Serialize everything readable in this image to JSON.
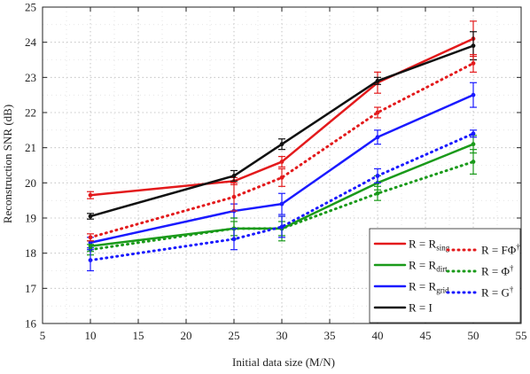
{
  "chart_data": {
    "type": "line",
    "xlabel": "Initial data size (M/N)",
    "ylabel": "Reconstruction SNR (dB)",
    "xlim": [
      5,
      55
    ],
    "ylim": [
      16,
      25
    ],
    "xticks": [
      5,
      10,
      15,
      20,
      25,
      30,
      35,
      40,
      45,
      50,
      55
    ],
    "yticks": [
      16,
      17,
      18,
      19,
      20,
      21,
      22,
      23,
      24,
      25
    ],
    "grid": "dotted",
    "legend_position": "bottom-right",
    "x": [
      10,
      25,
      30,
      40,
      50
    ],
    "series": [
      {
        "name": "R = R",
        "name_sub": "sing",
        "name_sup": "",
        "style": "solid",
        "color": "#e31a1c",
        "values": [
          19.65,
          20.05,
          20.6,
          22.85,
          24.1
        ],
        "errors": [
          0.1,
          0.1,
          0.15,
          0.3,
          0.5
        ]
      },
      {
        "name": "R = R",
        "name_sub": "dirt",
        "name_sup": "",
        "style": "solid",
        "color": "#1a9a1a",
        "values": [
          18.2,
          18.7,
          18.7,
          20.0,
          21.1
        ],
        "errors": [
          0.15,
          0.2,
          0.2,
          0.2,
          0.25
        ]
      },
      {
        "name": "R = R",
        "name_sub": "grid",
        "name_sup": "",
        "style": "solid",
        "color": "#1a1aff",
        "values": [
          18.3,
          19.2,
          19.4,
          21.3,
          22.5
        ],
        "errors": [
          0.15,
          0.2,
          0.3,
          0.2,
          0.35
        ]
      },
      {
        "name": "R = I",
        "name_sub": "",
        "name_sup": "",
        "style": "solid",
        "color": "#111111",
        "values": [
          19.05,
          20.2,
          21.1,
          22.9,
          23.9
        ],
        "errors": [
          0.08,
          0.15,
          0.15,
          0.1,
          0.4
        ]
      },
      {
        "name": "R = FΦ",
        "name_sub": "",
        "name_sup": "†",
        "style": "dotted",
        "color": "#e31a1c",
        "values": [
          18.45,
          19.6,
          20.15,
          22.0,
          23.4
        ],
        "errors": [
          0.1,
          0.4,
          0.25,
          0.15,
          0.25
        ]
      },
      {
        "name": "R = Φ",
        "name_sub": "",
        "name_sup": "†",
        "style": "dotted",
        "color": "#1a9a1a",
        "values": [
          18.1,
          18.7,
          18.7,
          19.7,
          20.6
        ],
        "errors": [
          0.15,
          0.3,
          0.35,
          0.2,
          0.35
        ]
      },
      {
        "name": "R = G",
        "name_sub": "",
        "name_sup": "†",
        "style": "dotted",
        "color": "#1a1aff",
        "values": [
          17.8,
          18.4,
          18.75,
          20.2,
          21.4
        ],
        "errors": [
          0.3,
          0.3,
          0.3,
          0.2,
          0.1
        ]
      }
    ]
  }
}
